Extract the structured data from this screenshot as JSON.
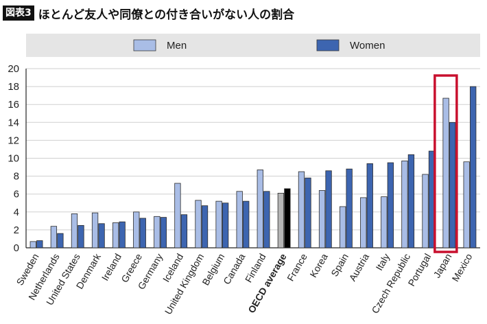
{
  "header": {
    "figure_label": "図表3",
    "title": "ほとんど友人や同僚との付き合いがない人の割合"
  },
  "colors": {
    "men": "#a9bde6",
    "women": "#3d65b0",
    "oecd_men": "#b5b5b5",
    "oecd_women": "#000000",
    "highlight": "#c8102e",
    "legend_band": "#e5e5e5",
    "grid": "#cfcfcf"
  },
  "chart_data": {
    "type": "bar",
    "title": "",
    "xlabel": "",
    "ylabel": "",
    "ylim": [
      0,
      20
    ],
    "yticks": [
      0,
      2,
      4,
      6,
      8,
      10,
      12,
      14,
      16,
      18,
      20
    ],
    "grid": true,
    "legend_position": "top",
    "categories": [
      "Sweden",
      "Netherlands",
      "United States",
      "Denmark",
      "Ireland",
      "Greece",
      "Germany",
      "Iceland",
      "United Kingdom",
      "Belgium",
      "Canada",
      "Finland",
      "OECD average",
      "France",
      "Korea",
      "Spain",
      "Austria",
      "Italy",
      "Czech Republic",
      "Portugal",
      "Japan",
      "Mexico"
    ],
    "series": [
      {
        "name": "Men",
        "values": [
          0.7,
          2.4,
          3.8,
          3.9,
          2.8,
          4.0,
          3.5,
          7.2,
          5.3,
          5.2,
          6.3,
          8.7,
          6.1,
          8.5,
          6.4,
          4.6,
          5.6,
          5.7,
          9.7,
          8.2,
          16.7,
          9.6
        ]
      },
      {
        "name": "Women",
        "values": [
          0.8,
          1.6,
          2.5,
          2.7,
          2.9,
          3.3,
          3.4,
          3.7,
          4.7,
          5.0,
          5.2,
          6.3,
          6.6,
          7.8,
          8.6,
          8.8,
          9.4,
          9.5,
          10.4,
          10.8,
          14.0,
          18.0
        ]
      }
    ],
    "emphasized_category": "OECD average",
    "highlighted_category": "Japan"
  }
}
